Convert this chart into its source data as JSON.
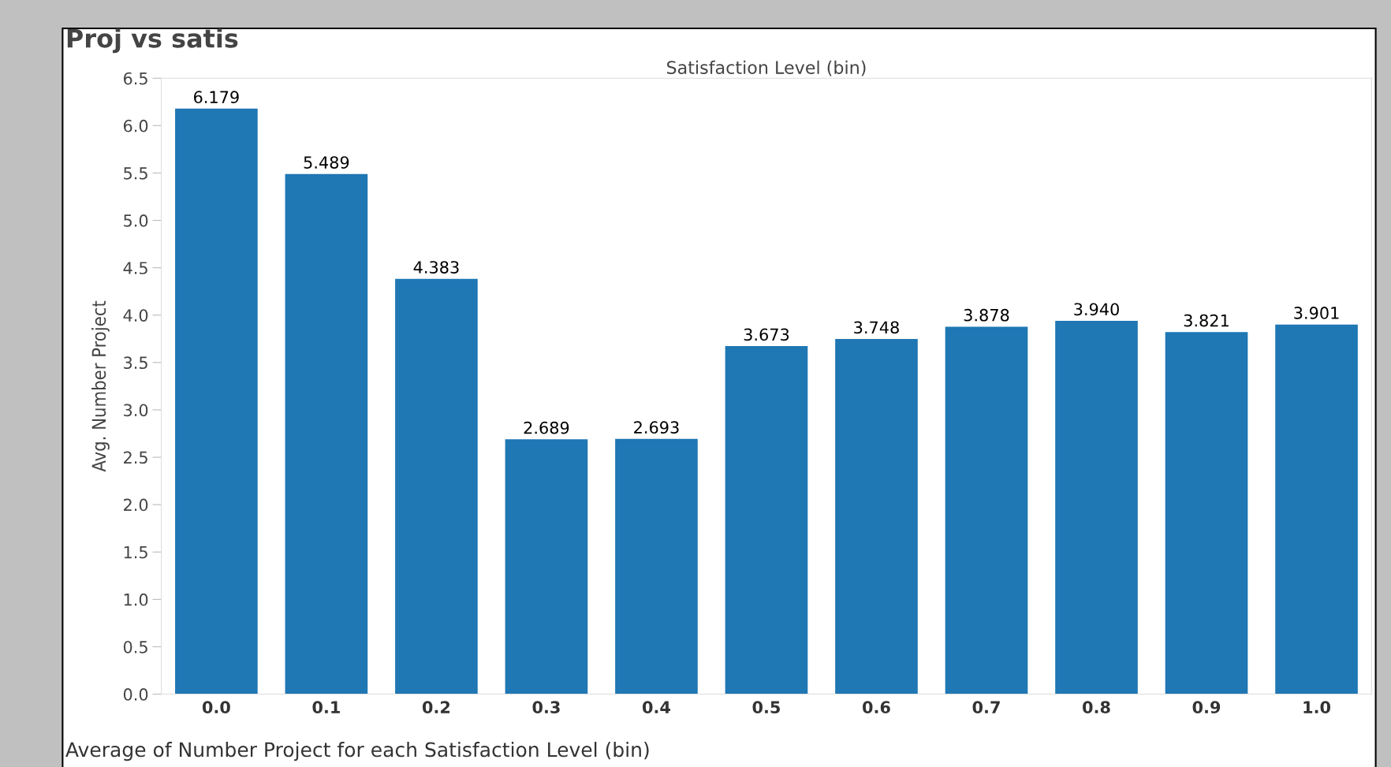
{
  "chart_data": {
    "type": "bar",
    "title": "Proj vs satis",
    "xlabel": "Satisfaction Level (bin)",
    "ylabel": "Avg. Number Project",
    "categories": [
      "0.0",
      "0.1",
      "0.2",
      "0.3",
      "0.4",
      "0.5",
      "0.6",
      "0.7",
      "0.8",
      "0.9",
      "1.0"
    ],
    "values": [
      6.179,
      5.489,
      4.383,
      2.689,
      2.693,
      3.673,
      3.748,
      3.878,
      3.94,
      3.821,
      3.901
    ],
    "value_labels": [
      "6.179",
      "5.489",
      "4.383",
      "2.689",
      "2.693",
      "3.673",
      "3.748",
      "3.878",
      "3.940",
      "3.821",
      "3.901"
    ],
    "color": "#1f77b4",
    "grid": false,
    "ylim": [
      0,
      6.5
    ],
    "yticks": [
      {
        "value": 0,
        "label": "0.0"
      },
      {
        "value": 0.5,
        "label": "0.5"
      },
      {
        "value": 1,
        "label": "1.0"
      },
      {
        "value": 1.5,
        "label": "1.5"
      },
      {
        "value": 2,
        "label": "2.0"
      },
      {
        "value": 2.5,
        "label": "2.5"
      },
      {
        "value": 3,
        "label": "3.0"
      },
      {
        "value": 3.5,
        "label": "3.5"
      },
      {
        "value": 4,
        "label": "4.0"
      },
      {
        "value": 4.5,
        "label": "4.5"
      },
      {
        "value": 5,
        "label": "5.0"
      },
      {
        "value": 5.5,
        "label": "5.5"
      },
      {
        "value": 6,
        "label": "6.0"
      },
      {
        "value": 6.5,
        "label": "6.5"
      }
    ],
    "annotations": [
      "Average of Number Project for each Satisfaction Level (bin)"
    ]
  }
}
